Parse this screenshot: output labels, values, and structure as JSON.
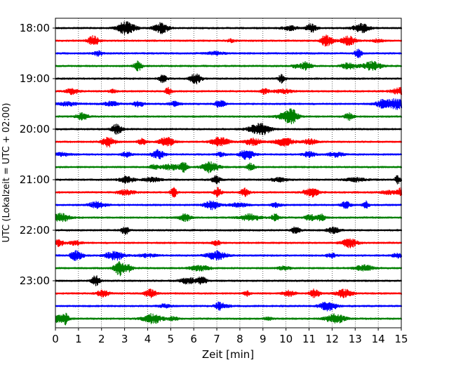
{
  "chart_data": {
    "type": "line",
    "title": "",
    "xlabel": "Zeit  [min]",
    "ylabel": "UTC (Lokalzeit = UTC + 02:00)",
    "xlim": [
      0,
      15
    ],
    "x_ticks": [
      "0",
      "1",
      "2",
      "3",
      "4",
      "5",
      "6",
      "7",
      "8",
      "9",
      "10",
      "11",
      "12",
      "13",
      "14",
      "15"
    ],
    "y_tick_labels": [
      "18:00",
      "19:00",
      "20:00",
      "21:00",
      "22:00",
      "23:00"
    ],
    "grid": "vertical dotted",
    "trace_interval_minutes": 15,
    "trace_colors": [
      "#000000",
      "#ff0000",
      "#0000ff",
      "#008000"
    ],
    "series": [
      {
        "start": "18:00"
      },
      {
        "start": "18:15"
      },
      {
        "start": "18:30"
      },
      {
        "start": "18:45"
      },
      {
        "start": "19:00"
      },
      {
        "start": "19:15"
      },
      {
        "start": "19:30"
      },
      {
        "start": "19:45"
      },
      {
        "start": "20:00"
      },
      {
        "start": "20:15"
      },
      {
        "start": "20:30"
      },
      {
        "start": "20:45"
      },
      {
        "start": "21:00"
      },
      {
        "start": "21:15"
      },
      {
        "start": "21:30"
      },
      {
        "start": "21:45"
      },
      {
        "start": "22:00"
      },
      {
        "start": "22:15"
      },
      {
        "start": "22:30"
      },
      {
        "start": "22:45"
      },
      {
        "start": "23:00"
      },
      {
        "start": "23:15"
      },
      {
        "start": "23:30"
      },
      {
        "start": "23:45"
      }
    ]
  }
}
